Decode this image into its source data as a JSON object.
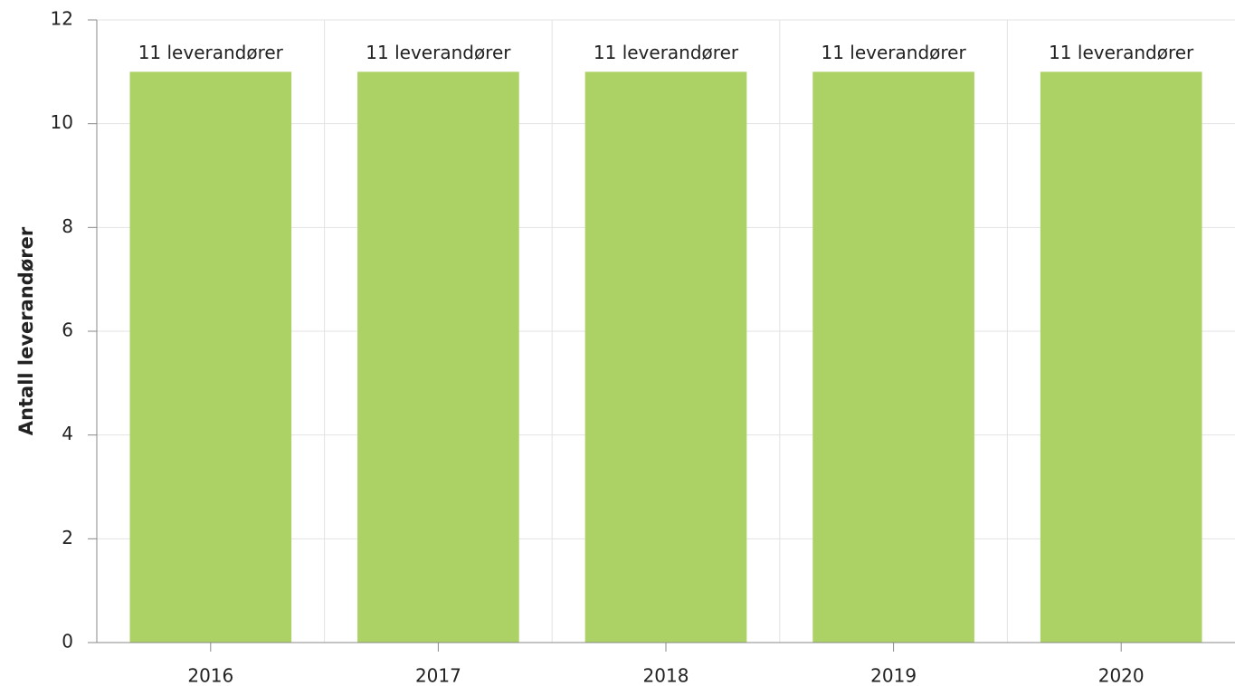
{
  "chart_data": {
    "type": "bar",
    "ylabel": "Antall leverandører",
    "categories": [
      "2016",
      "2017",
      "2018",
      "2019",
      "2020"
    ],
    "values": [
      11,
      11,
      11,
      11,
      11
    ],
    "value_labels": [
      "11 leverandører",
      "11 leverandører",
      "11 leverandører",
      "11 leverandører",
      "11 leverandører"
    ],
    "color": "#acd266",
    "ylim": [
      0,
      12
    ],
    "yticks": [
      0,
      2,
      4,
      6,
      8,
      10,
      12
    ],
    "grid": true
  }
}
